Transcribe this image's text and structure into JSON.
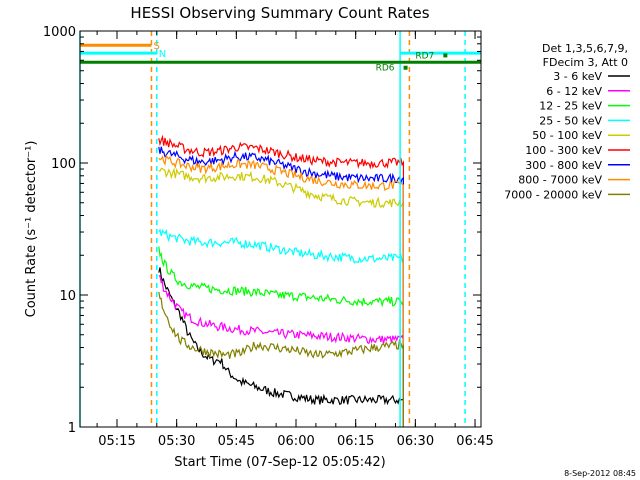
{
  "chart_data": {
    "type": "line",
    "title": "HESSI Observing Summary Count Rates",
    "xlabel": "Start Time (07-Sep-12 05:05:42)",
    "ylabel": "Count Rate (s⁻¹ detector⁻¹)",
    "yscale": "log",
    "ylim": [
      1,
      1000
    ],
    "xlim": [
      "05:05:42",
      "06:46:30"
    ],
    "x_ticks": [
      "05:15",
      "05:30",
      "05:45",
      "06:00",
      "06:15",
      "06:30",
      "06:45"
    ],
    "y_ticks": [
      "1",
      "10",
      "100",
      "1000"
    ],
    "legend_header": [
      "Det 1,3,5,6,7,9,",
      "FDecim 3, Att 0"
    ],
    "legend_position": "right",
    "footer_timestamp": "8-Sep-2012 08:45",
    "series": [
      {
        "name": "3 - 6 keV",
        "color": "#000000",
        "points": [
          [
            "05:25:30",
            16
          ],
          [
            "05:27:00",
            12
          ],
          [
            "05:29:00",
            9
          ],
          [
            "05:31:00",
            7
          ],
          [
            "05:33:00",
            5
          ],
          [
            "05:35:00",
            4
          ],
          [
            "05:37:00",
            3.5
          ],
          [
            "05:39:00",
            3.2
          ],
          [
            "05:41:00",
            3.2
          ],
          [
            "05:43:00",
            2.6
          ],
          [
            "05:46:00",
            2.2
          ],
          [
            "05:50:00",
            2
          ],
          [
            "05:55:00",
            1.8
          ],
          [
            "06:00:00",
            1.7
          ],
          [
            "06:05:00",
            1.6
          ],
          [
            "06:10:00",
            1.6
          ],
          [
            "06:15:00",
            1.6
          ],
          [
            "06:20:00",
            1.6
          ],
          [
            "06:25:00",
            1.6
          ],
          [
            "06:27:00",
            1.6
          ]
        ]
      },
      {
        "name": "6 - 12 keV",
        "color": "#ff00ff",
        "points": [
          [
            "05:25:30",
            14
          ],
          [
            "05:27:00",
            11
          ],
          [
            "05:29:00",
            9
          ],
          [
            "05:31:00",
            7.5
          ],
          [
            "05:33:00",
            6.8
          ],
          [
            "05:36:00",
            6.2
          ],
          [
            "05:40:00",
            5.8
          ],
          [
            "05:45:00",
            5.5
          ],
          [
            "05:50:00",
            5.3
          ],
          [
            "05:55:00",
            5.1
          ],
          [
            "06:00:00",
            5.0
          ],
          [
            "06:05:00",
            4.9
          ],
          [
            "06:10:00",
            4.8
          ],
          [
            "06:15:00",
            4.7
          ],
          [
            "06:20:00",
            4.6
          ],
          [
            "06:27:00",
            4.6
          ]
        ]
      },
      {
        "name": "12 - 25 keV",
        "color": "#00ff00",
        "points": [
          [
            "05:25:30",
            22
          ],
          [
            "05:27:00",
            17
          ],
          [
            "05:29:00",
            14
          ],
          [
            "05:31:00",
            12.5
          ],
          [
            "05:35:00",
            11.5
          ],
          [
            "05:40:00",
            11
          ],
          [
            "05:45:00",
            10.8
          ],
          [
            "05:50:00",
            10.5
          ],
          [
            "05:55:00",
            10
          ],
          [
            "06:00:00",
            9.8
          ],
          [
            "06:05:00",
            9.5
          ],
          [
            "06:10:00",
            9.2
          ],
          [
            "06:15:00",
            9.0
          ],
          [
            "06:20:00",
            8.9
          ],
          [
            "06:27:00",
            8.9
          ]
        ]
      },
      {
        "name": "25 - 50 keV",
        "color": "#00ffff",
        "points": [
          [
            "05:25:30",
            30
          ],
          [
            "05:28:00",
            28
          ],
          [
            "05:32:00",
            26
          ],
          [
            "05:36:00",
            25
          ],
          [
            "05:40:00",
            25
          ],
          [
            "05:45:00",
            25
          ],
          [
            "05:50:00",
            24
          ],
          [
            "05:55:00",
            22.5
          ],
          [
            "06:00:00",
            21
          ],
          [
            "06:05:00",
            20
          ],
          [
            "06:10:00",
            19.5
          ],
          [
            "06:15:00",
            19
          ],
          [
            "06:20:00",
            18.8
          ],
          [
            "06:27:00",
            19
          ]
        ]
      },
      {
        "name": "50 - 100 keV",
        "color": "#cccc00",
        "points": [
          [
            "05:25:30",
            88
          ],
          [
            "05:28:00",
            85
          ],
          [
            "05:32:00",
            80
          ],
          [
            "05:36:00",
            77
          ],
          [
            "05:40:00",
            78
          ],
          [
            "05:45:00",
            80
          ],
          [
            "05:50:00",
            78
          ],
          [
            "05:55:00",
            72
          ],
          [
            "06:00:00",
            64
          ],
          [
            "06:05:00",
            57
          ],
          [
            "06:10:00",
            53
          ],
          [
            "06:15:00",
            51
          ],
          [
            "06:20:00",
            50
          ],
          [
            "06:27:00",
            50
          ]
        ]
      },
      {
        "name": "100 - 300 keV",
        "color": "#ff0000",
        "points": [
          [
            "05:25:30",
            150
          ],
          [
            "05:28:00",
            142
          ],
          [
            "05:32:00",
            128
          ],
          [
            "05:36:00",
            120
          ],
          [
            "05:40:00",
            122
          ],
          [
            "05:45:00",
            132
          ],
          [
            "05:50:00",
            130
          ],
          [
            "05:55:00",
            120
          ],
          [
            "06:00:00",
            110
          ],
          [
            "06:05:00",
            104
          ],
          [
            "06:10:00",
            101
          ],
          [
            "06:15:00",
            100
          ],
          [
            "06:20:00",
            100
          ],
          [
            "06:27:00",
            101
          ]
        ]
      },
      {
        "name": "300 - 800 keV",
        "color": "#0000ff",
        "points": [
          [
            "05:25:30",
            125
          ],
          [
            "05:28:00",
            118
          ],
          [
            "05:32:00",
            108
          ],
          [
            "05:36:00",
            102
          ],
          [
            "05:40:00",
            104
          ],
          [
            "05:45:00",
            112
          ],
          [
            "05:50:00",
            110
          ],
          [
            "05:55:00",
            100
          ],
          [
            "06:00:00",
            90
          ],
          [
            "06:05:00",
            83
          ],
          [
            "06:10:00",
            79
          ],
          [
            "06:15:00",
            77
          ],
          [
            "06:20:00",
            76
          ],
          [
            "06:27:00",
            77
          ]
        ]
      },
      {
        "name": "800 - 7000 keV",
        "color": "#ff8c00",
        "points": [
          [
            "05:25:30",
            110
          ],
          [
            "05:28:00",
            104
          ],
          [
            "05:32:00",
            96
          ],
          [
            "05:36:00",
            91
          ],
          [
            "05:40:00",
            93
          ],
          [
            "05:45:00",
            98
          ],
          [
            "05:50:00",
            96
          ],
          [
            "05:55:00",
            88
          ],
          [
            "06:00:00",
            80
          ],
          [
            "06:05:00",
            74
          ],
          [
            "06:10:00",
            70
          ],
          [
            "06:15:00",
            68
          ],
          [
            "06:20:00",
            67
          ],
          [
            "06:27:00",
            68
          ]
        ]
      },
      {
        "name": "7000 - 20000 keV",
        "color": "#808000",
        "points": [
          [
            "05:25:30",
            10
          ],
          [
            "05:27:00",
            7.5
          ],
          [
            "05:29:00",
            5.5
          ],
          [
            "05:31:00",
            4.5
          ],
          [
            "05:34:00",
            4
          ],
          [
            "05:38:00",
            3.7
          ],
          [
            "05:42:00",
            3.5
          ],
          [
            "05:46:00",
            3.6
          ],
          [
            "05:50:00",
            4.2
          ],
          [
            "05:55:00",
            4.0
          ],
          [
            "06:00:00",
            3.8
          ],
          [
            "06:05:00",
            3.5
          ],
          [
            "06:10:00",
            3.6
          ],
          [
            "06:15:00",
            3.8
          ],
          [
            "06:20:00",
            4.0
          ],
          [
            "06:27:00",
            4.2
          ]
        ]
      }
    ],
    "markers": {
      "vertical_lines": [
        {
          "time": "05:05:42",
          "style": "solid",
          "color": "#00ffff"
        },
        {
          "time": "05:23:40",
          "style": "dashed",
          "color": "#ff8c00"
        },
        {
          "time": "05:25:00",
          "style": "dashed",
          "color": "#00ffff"
        },
        {
          "time": "06:26:10",
          "style": "solid",
          "color": "#00ffff"
        },
        {
          "time": "06:28:30",
          "style": "dashed",
          "color": "#ff8c00"
        },
        {
          "time": "06:42:30",
          "style": "dashed",
          "color": "#00ffff"
        }
      ],
      "horizontal_bars": [
        {
          "label": "S",
          "color": "#ff8c00",
          "level": 780,
          "from": "05:05:42",
          "to": "05:23:40"
        },
        {
          "label": "N",
          "color": "#00ffff",
          "level": 680,
          "from": "05:05:42",
          "to": "05:25:00"
        },
        {
          "label": "",
          "color": "#008000",
          "level": 580,
          "from": "05:05:42",
          "to": "06:46:30"
        },
        {
          "label": "",
          "color": "#00ffff",
          "level": 680,
          "from": "06:26:10",
          "to": "06:46:30"
        }
      ],
      "text_labels": [
        {
          "text": "RD7",
          "time": "06:30:00",
          "level": 620,
          "color": "#008000"
        },
        {
          "text": "RD6",
          "time": "06:20:00",
          "level": 500,
          "color": "#008000"
        }
      ]
    }
  }
}
